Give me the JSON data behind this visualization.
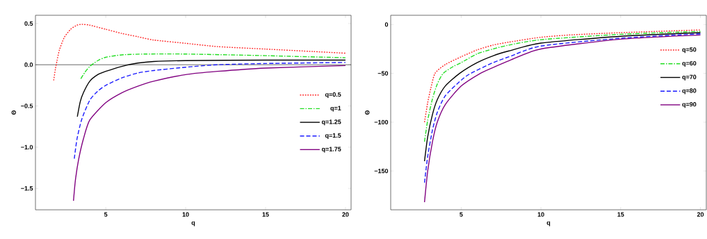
{
  "chart_data": [
    {
      "type": "line",
      "xlabel": "q",
      "ylabel": "Θ",
      "xlim": [
        0.6,
        20.35
      ],
      "ylim": [
        -1.76,
        0.6
      ],
      "xticks": [
        5,
        10,
        15,
        20
      ],
      "yticks": [
        {
          "value": -1.5,
          "label": "−1.5"
        },
        {
          "value": -1.0,
          "label": "−1.0"
        },
        {
          "value": -0.5,
          "label": "−0.5"
        },
        {
          "value": 0,
          "label": "0.0"
        },
        0.5
      ],
      "legend": "right",
      "ref_lines": [
        {
          "axis": "y",
          "value": 0,
          "color": "#000000"
        }
      ],
      "series": [
        {
          "name": "q=0.5",
          "color": "#ff2020",
          "line_style": "dotted",
          "x": [
            1.74,
            1.85,
            1.95,
            2.1,
            2.4,
            2.8,
            3.2,
            3.5,
            4,
            5,
            6,
            7,
            8,
            10,
            12,
            15,
            18,
            20
          ],
          "values": [
            -0.19,
            -0.05,
            0.05,
            0.18,
            0.33,
            0.43,
            0.48,
            0.49,
            0.48,
            0.43,
            0.38,
            0.34,
            0.3,
            0.26,
            0.22,
            0.19,
            0.16,
            0.14
          ]
        },
        {
          "name": "q=1",
          "color": "#22dd22",
          "line_style": "dashdot",
          "x": [
            3.44,
            3.7,
            4.0,
            4.5,
            5,
            6,
            7.5,
            10,
            15,
            20
          ],
          "values": [
            -0.17,
            -0.09,
            -0.02,
            0.05,
            0.09,
            0.12,
            0.13,
            0.13,
            0.11,
            0.085
          ]
        },
        {
          "name": "q=1.25",
          "color": "#000000",
          "line_style": "solid",
          "x": [
            3.22,
            3.4,
            3.6,
            4,
            4.5,
            5,
            6,
            7,
            8,
            10,
            15,
            20
          ],
          "values": [
            -0.63,
            -0.45,
            -0.34,
            -0.2,
            -0.12,
            -0.08,
            -0.02,
            0.02,
            0.04,
            0.05,
            0.056,
            0.056
          ]
        },
        {
          "name": "q=1.5",
          "color": "#1a1aff",
          "line_style": "dashed",
          "x": [
            3.03,
            3.2,
            3.5,
            4,
            4.5,
            5,
            6,
            7,
            8,
            10,
            12,
            15,
            20
          ],
          "values": [
            -1.14,
            -0.9,
            -0.66,
            -0.43,
            -0.32,
            -0.25,
            -0.16,
            -0.1,
            -0.07,
            -0.03,
            0.0,
            0.015,
            0.028
          ]
        },
        {
          "name": "q=1.75",
          "color": "#800080",
          "line_style": "solid",
          "x": [
            2.98,
            3.1,
            3.3,
            3.6,
            4,
            5,
            6,
            7,
            8,
            10,
            12,
            15,
            20
          ],
          "values": [
            -1.65,
            -1.4,
            -1.15,
            -0.9,
            -0.67,
            -0.46,
            -0.34,
            -0.26,
            -0.2,
            -0.12,
            -0.08,
            -0.04,
            -0.01
          ]
        }
      ]
    },
    {
      "type": "line",
      "xlabel": "q",
      "ylabel": "Θ",
      "xlim": [
        0.58,
        20.37
      ],
      "ylim": [
        -189.8,
        9.5
      ],
      "xticks": [
        5,
        10,
        15,
        20
      ],
      "yticks": [
        {
          "value": -150,
          "label": "−150"
        },
        {
          "value": -100,
          "label": "−100"
        },
        {
          "value": -50,
          "label": "−50"
        },
        0
      ],
      "legend": "top right",
      "series": [
        {
          "name": "q=50",
          "color": "#ff2020",
          "line_style": "dotted",
          "x": [
            2.7,
            2.9,
            3.1,
            3.36,
            4,
            5,
            6,
            7,
            8,
            10,
            12,
            15,
            20
          ],
          "values": [
            -100,
            -80,
            -65,
            -50,
            -41,
            -33,
            -26,
            -21,
            -18,
            -13,
            -10.5,
            -8.3,
            -5.5
          ]
        },
        {
          "name": "q=60",
          "color": "#22dd22",
          "line_style": "dashdot",
          "x": [
            2.7,
            2.9,
            3.2,
            3.5,
            3.87,
            4.5,
            5,
            6,
            7,
            8,
            10,
            15,
            20
          ],
          "values": [
            -120,
            -98,
            -76,
            -61,
            -50,
            -43,
            -39,
            -30,
            -25,
            -21,
            -15.5,
            -10,
            -7
          ]
        },
        {
          "name": "q=70",
          "color": "#000000",
          "line_style": "solid",
          "x": [
            2.7,
            2.9,
            3.2,
            3.5,
            4,
            4.9,
            6,
            7,
            8,
            10,
            15,
            20
          ],
          "values": [
            -140,
            -115,
            -92,
            -77,
            -63,
            -50,
            -39,
            -32,
            -27,
            -19,
            -12,
            -8.3
          ]
        },
        {
          "name": "q=80",
          "color": "#1a1aff",
          "line_style": "dashed",
          "x": [
            2.7,
            2.9,
            3.2,
            3.5,
            4,
            5,
            5.6,
            7,
            8,
            10,
            15,
            20
          ],
          "values": [
            -162,
            -135,
            -108,
            -90,
            -73,
            -57,
            -50,
            -39,
            -33,
            -22,
            -14,
            -9.5
          ]
        },
        {
          "name": "q=90",
          "color": "#800080",
          "line_style": "solid",
          "x": [
            2.7,
            2.9,
            3.2,
            3.5,
            4,
            5,
            6.2,
            7,
            8,
            10,
            15,
            20
          ],
          "values": [
            -182,
            -150,
            -120,
            -100,
            -82,
            -63,
            -50,
            -44,
            -37,
            -25,
            -15,
            -10.7
          ]
        }
      ]
    }
  ]
}
